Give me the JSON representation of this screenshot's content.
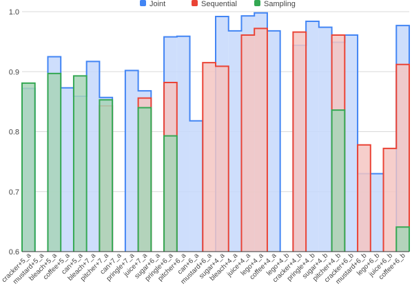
{
  "chart_data": {
    "type": "area",
    "step": true,
    "categories": [
      "cracker+5_a",
      "mustard+5_a",
      "bleach+5_a",
      "coffee+5_a",
      "can+5_a",
      "bleach+7_a",
      "pitcher+7_a",
      "can+7_a",
      "pringle+7_a",
      "juice+7_a",
      "sugar+6_a",
      "pringle+6_a",
      "pitcher+6_a",
      "can+6_a",
      "mustard+6_a",
      "sugar+4_a",
      "bleach+4_a",
      "juice+4_a",
      "lego+4_a",
      "coffee+4_a",
      "lego+4_b",
      "cracker+4_b",
      "pringle+4_b",
      "sugar+4_b",
      "pitcher+4_b",
      "cracker+6_b",
      "mustard+6_b",
      "lego+6_b",
      "juice+6_b",
      "coffee+6_b"
    ],
    "series": [
      {
        "name": "Joint",
        "color": "#4285f4",
        "fill": "#c6d8fb",
        "values": [
          0.872,
          null,
          0.925,
          0.873,
          0.859,
          0.917,
          0.857,
          null,
          0.902,
          0.868,
          null,
          0.958,
          0.959,
          0.818,
          null,
          0.992,
          0.968,
          0.993,
          0.998,
          0.968,
          null,
          0.944,
          0.984,
          0.974,
          0.949,
          0.961,
          0.73,
          0.73,
          null,
          0.977
        ]
      },
      {
        "name": "Sequential",
        "color": "#ea4335",
        "fill": "#f4c6c2",
        "values": [
          null,
          null,
          null,
          null,
          null,
          null,
          0.843,
          null,
          null,
          0.856,
          null,
          0.882,
          null,
          null,
          0.915,
          0.909,
          null,
          0.961,
          0.972,
          null,
          null,
          0.966,
          null,
          null,
          0.961,
          null,
          0.778,
          null,
          0.772,
          0.912
        ]
      },
      {
        "name": "Sampling",
        "color": "#34a853",
        "fill": "#a8d5b8",
        "values": [
          0.881,
          null,
          0.897,
          null,
          0.893,
          null,
          0.853,
          null,
          null,
          0.84,
          null,
          0.793,
          null,
          null,
          null,
          null,
          null,
          null,
          null,
          null,
          null,
          null,
          null,
          null,
          0.836,
          null,
          null,
          null,
          null,
          0.641
        ]
      }
    ],
    "ylim": [
      0.6,
      1.0
    ],
    "yticks": [
      "0.6",
      "0.7",
      "0.8",
      "0.9",
      "1.0"
    ],
    "grid": true,
    "legend_position": "top"
  }
}
